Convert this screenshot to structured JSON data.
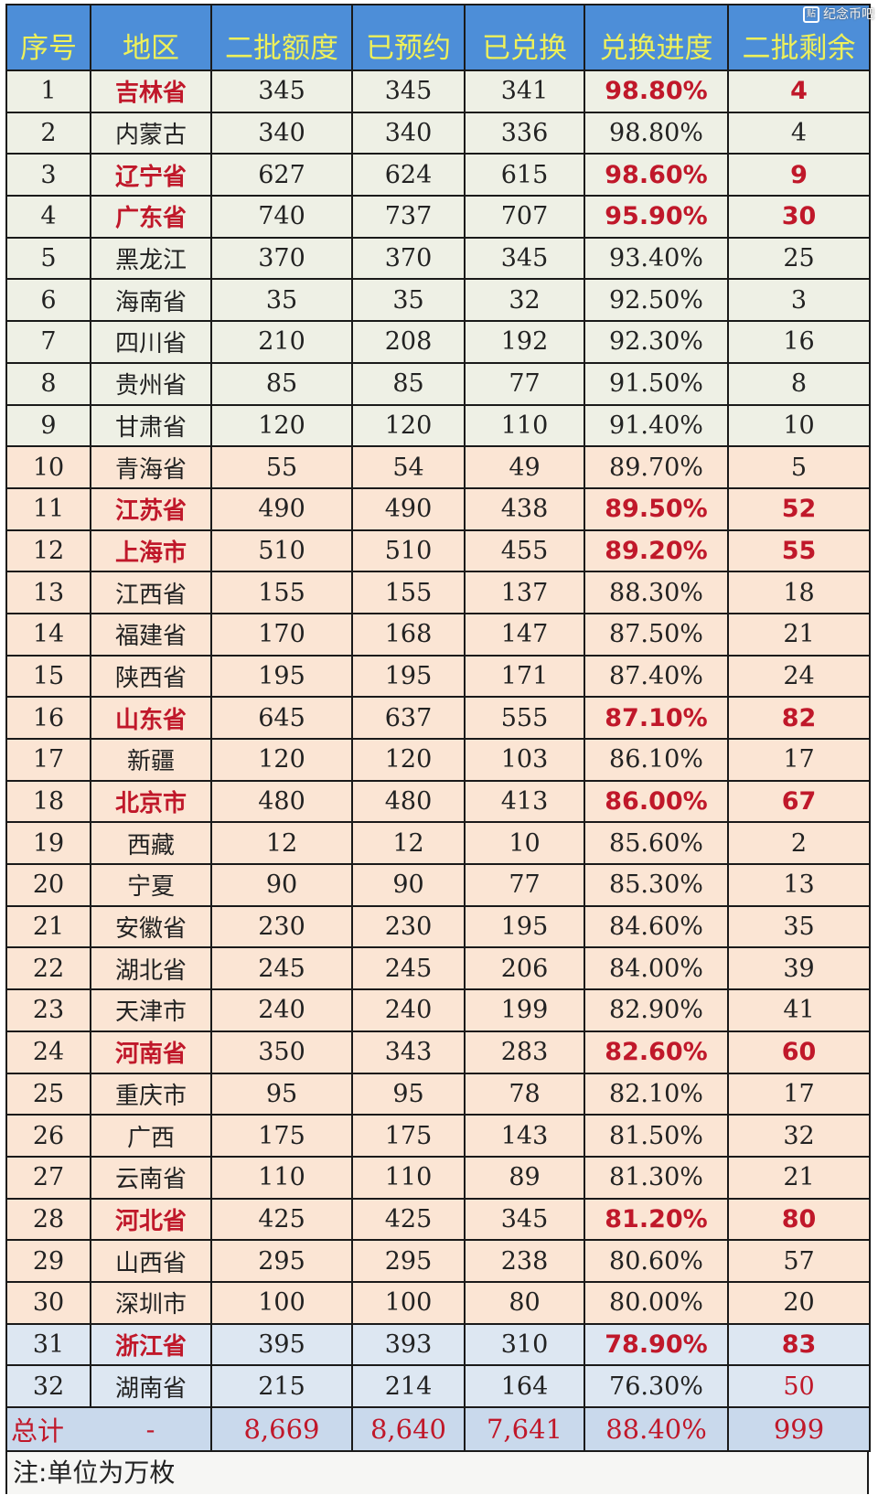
{
  "watermark": {
    "icon": "tieba-paw-icon",
    "text": "纪念币吧"
  },
  "colors": {
    "header_bg": "#4d8ed8",
    "header_text": "#eef05a",
    "highlight_red": "#c0182a"
  },
  "headers": [
    "序号",
    "地区",
    "二批额度",
    "已预约",
    "已兑换",
    "兑换进度",
    "二批剩余"
  ],
  "rows": [
    {
      "no": "1",
      "region": "吉林省",
      "quota": "345",
      "reserved": "345",
      "exchanged": "341",
      "progress": "98.80%",
      "remaining": "4",
      "highlight": true
    },
    {
      "no": "2",
      "region": "内蒙古",
      "quota": "340",
      "reserved": "340",
      "exchanged": "336",
      "progress": "98.80%",
      "remaining": "4",
      "highlight": false
    },
    {
      "no": "3",
      "region": "辽宁省",
      "quota": "627",
      "reserved": "624",
      "exchanged": "615",
      "progress": "98.60%",
      "remaining": "9",
      "highlight": true
    },
    {
      "no": "4",
      "region": "广东省",
      "quota": "740",
      "reserved": "737",
      "exchanged": "707",
      "progress": "95.90%",
      "remaining": "30",
      "highlight": true
    },
    {
      "no": "5",
      "region": "黑龙江",
      "quota": "370",
      "reserved": "370",
      "exchanged": "345",
      "progress": "93.40%",
      "remaining": "25",
      "highlight": false
    },
    {
      "no": "6",
      "region": "海南省",
      "quota": "35",
      "reserved": "35",
      "exchanged": "32",
      "progress": "92.50%",
      "remaining": "3",
      "highlight": false
    },
    {
      "no": "7",
      "region": "四川省",
      "quota": "210",
      "reserved": "208",
      "exchanged": "192",
      "progress": "92.30%",
      "remaining": "16",
      "highlight": false
    },
    {
      "no": "8",
      "region": "贵州省",
      "quota": "85",
      "reserved": "85",
      "exchanged": "77",
      "progress": "91.50%",
      "remaining": "8",
      "highlight": false
    },
    {
      "no": "9",
      "region": "甘肃省",
      "quota": "120",
      "reserved": "120",
      "exchanged": "110",
      "progress": "91.40%",
      "remaining": "10",
      "highlight": false
    },
    {
      "no": "10",
      "region": "青海省",
      "quota": "55",
      "reserved": "54",
      "exchanged": "49",
      "progress": "89.70%",
      "remaining": "5",
      "highlight": false
    },
    {
      "no": "11",
      "region": "江苏省",
      "quota": "490",
      "reserved": "490",
      "exchanged": "438",
      "progress": "89.50%",
      "remaining": "52",
      "highlight": true
    },
    {
      "no": "12",
      "region": "上海市",
      "quota": "510",
      "reserved": "510",
      "exchanged": "455",
      "progress": "89.20%",
      "remaining": "55",
      "highlight": true
    },
    {
      "no": "13",
      "region": "江西省",
      "quota": "155",
      "reserved": "155",
      "exchanged": "137",
      "progress": "88.30%",
      "remaining": "18",
      "highlight": false
    },
    {
      "no": "14",
      "region": "福建省",
      "quota": "170",
      "reserved": "168",
      "exchanged": "147",
      "progress": "87.50%",
      "remaining": "21",
      "highlight": false
    },
    {
      "no": "15",
      "region": "陕西省",
      "quota": "195",
      "reserved": "195",
      "exchanged": "171",
      "progress": "87.40%",
      "remaining": "24",
      "highlight": false
    },
    {
      "no": "16",
      "region": "山东省",
      "quota": "645",
      "reserved": "637",
      "exchanged": "555",
      "progress": "87.10%",
      "remaining": "82",
      "highlight": true
    },
    {
      "no": "17",
      "region": "新疆",
      "quota": "120",
      "reserved": "120",
      "exchanged": "103",
      "progress": "86.10%",
      "remaining": "17",
      "highlight": false
    },
    {
      "no": "18",
      "region": "北京市",
      "quota": "480",
      "reserved": "480",
      "exchanged": "413",
      "progress": "86.00%",
      "remaining": "67",
      "highlight": true
    },
    {
      "no": "19",
      "region": "西藏",
      "quota": "12",
      "reserved": "12",
      "exchanged": "10",
      "progress": "85.60%",
      "remaining": "2",
      "highlight": false
    },
    {
      "no": "20",
      "region": "宁夏",
      "quota": "90",
      "reserved": "90",
      "exchanged": "77",
      "progress": "85.30%",
      "remaining": "13",
      "highlight": false
    },
    {
      "no": "21",
      "region": "安徽省",
      "quota": "230",
      "reserved": "230",
      "exchanged": "195",
      "progress": "84.60%",
      "remaining": "35",
      "highlight": false
    },
    {
      "no": "22",
      "region": "湖北省",
      "quota": "245",
      "reserved": "245",
      "exchanged": "206",
      "progress": "84.00%",
      "remaining": "39",
      "highlight": false
    },
    {
      "no": "23",
      "region": "天津市",
      "quota": "240",
      "reserved": "240",
      "exchanged": "199",
      "progress": "82.90%",
      "remaining": "41",
      "highlight": false
    },
    {
      "no": "24",
      "region": "河南省",
      "quota": "350",
      "reserved": "343",
      "exchanged": "283",
      "progress": "82.60%",
      "remaining": "60",
      "highlight": true
    },
    {
      "no": "25",
      "region": "重庆市",
      "quota": "95",
      "reserved": "95",
      "exchanged": "78",
      "progress": "82.10%",
      "remaining": "17",
      "highlight": false
    },
    {
      "no": "26",
      "region": "广西",
      "quota": "175",
      "reserved": "175",
      "exchanged": "143",
      "progress": "81.50%",
      "remaining": "32",
      "highlight": false
    },
    {
      "no": "27",
      "region": "云南省",
      "quota": "110",
      "reserved": "110",
      "exchanged": "89",
      "progress": "81.30%",
      "remaining": "21",
      "highlight": false
    },
    {
      "no": "28",
      "region": "河北省",
      "quota": "425",
      "reserved": "425",
      "exchanged": "345",
      "progress": "81.20%",
      "remaining": "80",
      "highlight": true
    },
    {
      "no": "29",
      "region": "山西省",
      "quota": "295",
      "reserved": "295",
      "exchanged": "238",
      "progress": "80.60%",
      "remaining": "57",
      "highlight": false
    },
    {
      "no": "30",
      "region": "深圳市",
      "quota": "100",
      "reserved": "100",
      "exchanged": "80",
      "progress": "80.00%",
      "remaining": "20",
      "highlight": false
    },
    {
      "no": "31",
      "region": "浙江省",
      "quota": "395",
      "reserved": "393",
      "exchanged": "310",
      "progress": "78.90%",
      "remaining": "83",
      "highlight": true
    },
    {
      "no": "32",
      "region": "湖南省",
      "quota": "215",
      "reserved": "214",
      "exchanged": "164",
      "progress": "76.30%",
      "remaining": "50",
      "highlight": false,
      "remaining_red": true
    }
  ],
  "total": {
    "label": "总计",
    "region": "-",
    "quota": "8,669",
    "reserved": "8,640",
    "exchanged": "7,641",
    "progress": "88.40%",
    "remaining": "999"
  },
  "note": "注:单位为万枚"
}
